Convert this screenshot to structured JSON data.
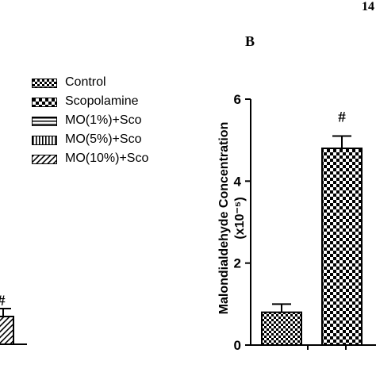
{
  "page_number": "14",
  "panel_label": "B",
  "legend": [
    {
      "label": "Control",
      "pattern": "checker-fine"
    },
    {
      "label": "Scopolamine",
      "pattern": "checker-coarse"
    },
    {
      "label": "MO(1%)+Sco",
      "pattern": "horizontal-lines"
    },
    {
      "label": "MO(5%)+Sco",
      "pattern": "vertical-lines"
    },
    {
      "label": "MO(10%)+Sco",
      "pattern": "diagonal-lines"
    }
  ],
  "chart_data": {
    "type": "bar",
    "ylabel": "Malondialdehyde Concentration",
    "ylabel_unit": "(x10⁻⁵)",
    "ylim": [
      0,
      6
    ],
    "yticks": [
      "0",
      "2",
      "4",
      "6"
    ],
    "categories": [
      "Control",
      "Scopolamine"
    ],
    "values": [
      0.8,
      4.8
    ],
    "errors": [
      0.2,
      0.3
    ],
    "annotations": [
      "",
      "#"
    ],
    "grid": false
  },
  "cut_off_left_panel": {
    "visible_bar_value_fraction": 0.07,
    "annotation": "#"
  }
}
